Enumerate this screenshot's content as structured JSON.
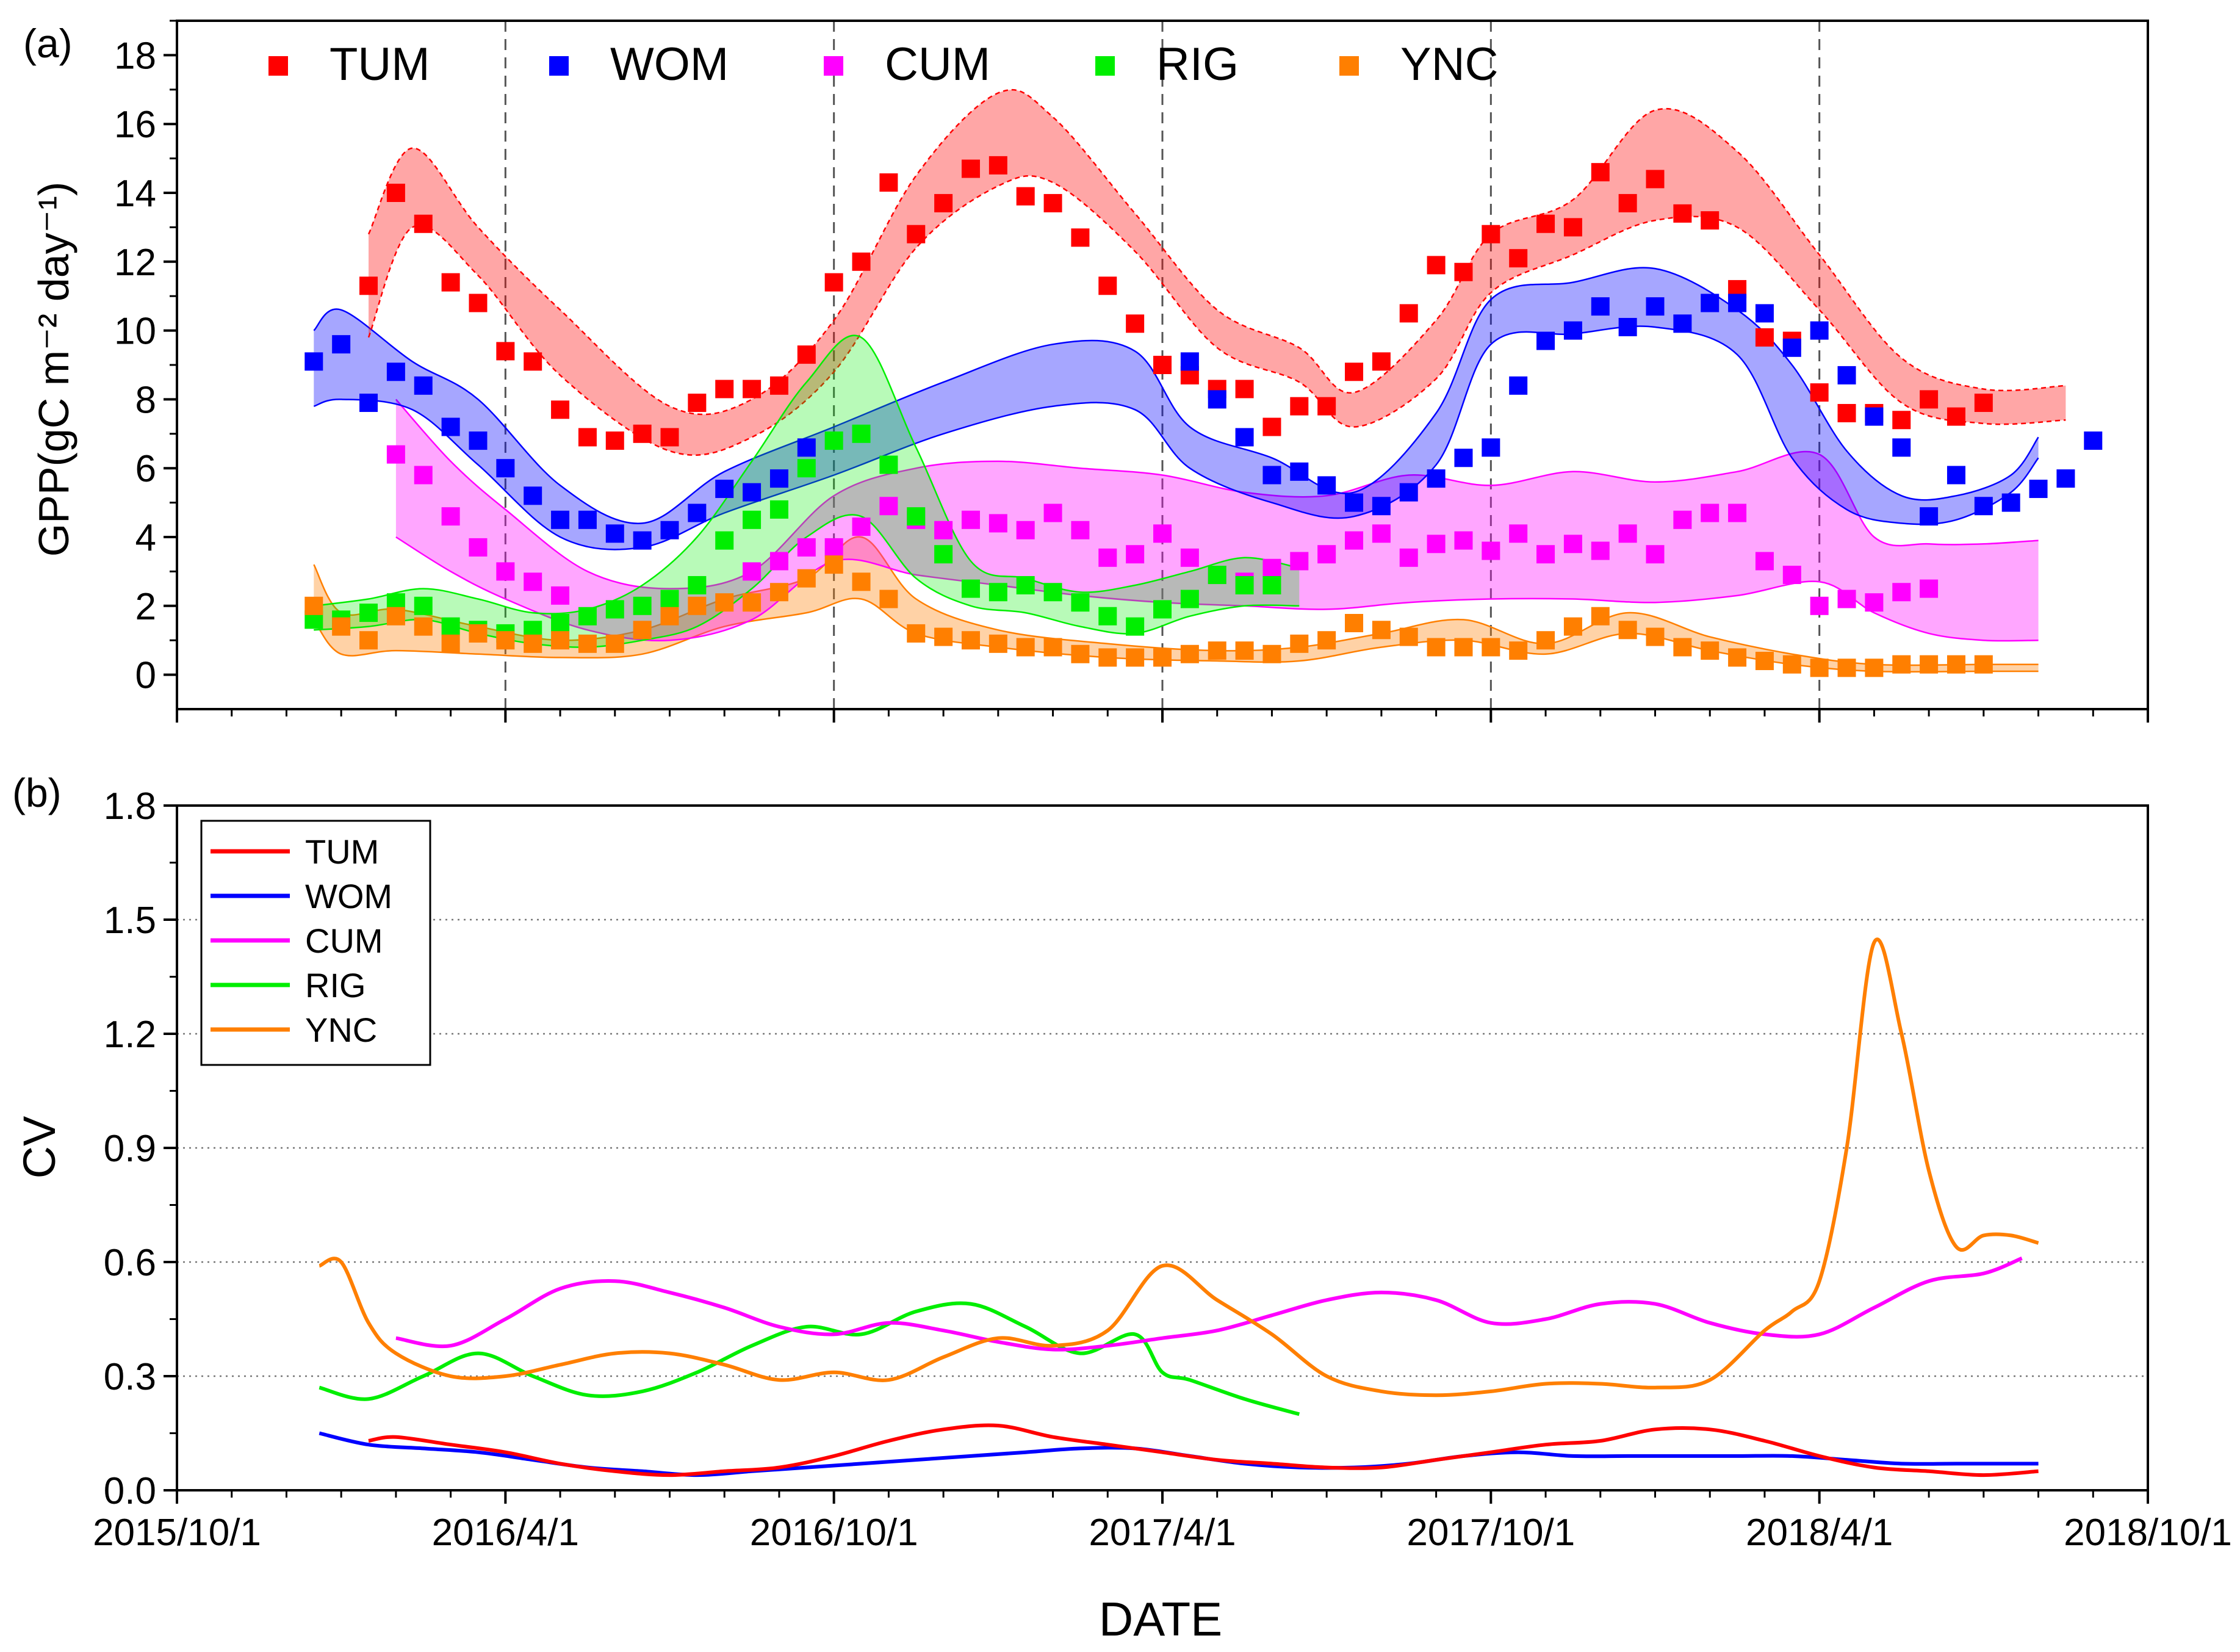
{
  "figure": {
    "x_axis_title": "DATE",
    "panel_a_label": "(a)",
    "panel_b_label": "(b)"
  },
  "colors": {
    "TUM": "#ff0000",
    "WOM": "#0000ff",
    "CUM": "#ff00ff",
    "RIG": "#00ee00",
    "YNC": "#ff7f00"
  },
  "chart_data": [
    {
      "type": "scatter",
      "panel": "a",
      "ylabel": "GPP(gC m⁻² day⁻¹)",
      "xlabel": "DATE",
      "x_unit": "months since 2015-10-01",
      "xlim": [
        0,
        36
      ],
      "ylim": [
        -1,
        19
      ],
      "y_ticks": [
        0,
        2,
        4,
        6,
        8,
        10,
        12,
        14,
        16,
        18
      ],
      "x_tick_labels": [
        "2015/10/1",
        "2016/4/1",
        "2016/10/1",
        "2017/4/1",
        "2017/10/1",
        "2018/4/1",
        "2018/10/1"
      ],
      "x_tick_values": [
        0,
        6,
        12,
        18,
        24,
        30,
        36
      ],
      "vertical_dashed_lines_at": [
        6,
        12,
        18,
        24,
        30
      ],
      "legend": [
        "TUM",
        "WOM",
        "CUM",
        "RIG",
        "YNC"
      ],
      "legend_position": "top",
      "series": [
        {
          "name": "TUM",
          "t0": 3.5,
          "dt": 0.5,
          "values": [
            11.3,
            14.0,
            13.1,
            11.4,
            10.8,
            9.4,
            9.1,
            7.7,
            6.9,
            6.8,
            7.0,
            6.9,
            7.9,
            8.3,
            8.3,
            8.4,
            9.3,
            11.4,
            12.0,
            14.3,
            12.8,
            13.7,
            14.7,
            14.8,
            13.9,
            13.7,
            12.7,
            11.3,
            10.2,
            9.0,
            8.7,
            8.3,
            8.3,
            7.2,
            7.8,
            7.8,
            8.8,
            9.1,
            10.5,
            11.9,
            11.7,
            12.8,
            12.1,
            13.1,
            13.0,
            14.6,
            13.7,
            14.4,
            13.4,
            13.2,
            11.2,
            9.8,
            9.7,
            8.2,
            7.6,
            7.6,
            7.4,
            8.0,
            7.5,
            7.9
          ],
          "band_t": [
            3.5,
            4.3,
            5.5,
            7,
            9,
            10.5,
            12,
            13.5,
            15,
            16,
            17.5,
            19,
            20.5,
            21.5,
            23,
            24,
            25.5,
            27,
            28.5,
            30,
            31.5,
            33,
            34.5
          ],
          "band_upper": [
            12.8,
            15.3,
            13.0,
            10.6,
            7.8,
            8.0,
            10.3,
            14.5,
            16.9,
            16.2,
            13.4,
            10.6,
            9.5,
            8.2,
            10.3,
            12.8,
            13.8,
            16.4,
            15.2,
            12.2,
            9.2,
            8.3,
            8.4
          ],
          "band_lower": [
            9.8,
            13.0,
            11.6,
            8.7,
            6.5,
            6.9,
            8.8,
            12.4,
            14.2,
            14.3,
            12.3,
            9.5,
            8.5,
            7.2,
            8.6,
            11.1,
            12.2,
            13.2,
            13.0,
            10.6,
            7.9,
            7.3,
            7.4
          ]
        },
        {
          "name": "WOM",
          "t0": 2.5,
          "dt": 0.5,
          "values": [
            9.1,
            9.6,
            7.9,
            8.8,
            8.4,
            7.2,
            6.8,
            6.0,
            5.2,
            4.5,
            4.5,
            4.1,
            3.9,
            4.2,
            4.7,
            5.4,
            5.3,
            5.7,
            6.6,
            null,
            null,
            null,
            null,
            null,
            null,
            null,
            null,
            null,
            null,
            null,
            null,
            null,
            9.1,
            8.0,
            6.9,
            5.8,
            5.9,
            5.5,
            5.0,
            4.9,
            5.3,
            5.7,
            6.3,
            6.6,
            8.4,
            9.7,
            10.0,
            10.7,
            10.1,
            10.7,
            10.2,
            10.8,
            10.8,
            10.5,
            9.5,
            10.0,
            8.7,
            7.5,
            6.6,
            4.6,
            5.8,
            4.9,
            5.0,
            5.4,
            5.7,
            6.8
          ],
          "band_t": [
            2.5,
            3,
            4.3,
            5.5,
            7,
            8.5,
            10,
            12,
            14,
            16,
            17.5,
            18.5,
            20,
            21.5,
            23,
            24,
            25.5,
            27,
            28.5,
            29.5,
            30.5,
            31.5,
            32.5,
            33.5,
            34
          ],
          "band_upper": [
            10.0,
            10.6,
            9.1,
            8.0,
            5.5,
            4.4,
            5.9,
            7.2,
            8.5,
            9.6,
            9.4,
            7.2,
            6.3,
            5.3,
            7.6,
            10.9,
            11.4,
            11.8,
            10.6,
            9.0,
            6.5,
            5.2,
            5.2,
            5.8,
            6.9
          ],
          "band_lower": [
            7.8,
            8.0,
            7.7,
            6.1,
            4.0,
            3.7,
            4.7,
            5.8,
            7.0,
            7.8,
            7.7,
            6.0,
            5.0,
            4.6,
            6.1,
            9.6,
            9.9,
            10.1,
            9.3,
            6.3,
            4.8,
            4.4,
            4.5,
            5.3,
            6.3
          ]
        },
        {
          "name": "CUM",
          "t0": 4,
          "dt": 0.5,
          "values": [
            6.4,
            5.8,
            4.6,
            3.7,
            3.0,
            2.7,
            2.3,
            null,
            null,
            null,
            null,
            null,
            null,
            3.0,
            3.3,
            3.7,
            3.7,
            4.3,
            4.9,
            4.5,
            4.2,
            4.5,
            4.4,
            4.2,
            4.7,
            4.2,
            3.4,
            3.5,
            4.1,
            3.4,
            2.9,
            2.7,
            3.1,
            3.3,
            3.5,
            3.9,
            4.1,
            3.4,
            3.8,
            3.9,
            3.6,
            4.1,
            3.5,
            3.8,
            3.6,
            4.1,
            3.5,
            4.5,
            4.7,
            4.7,
            3.3,
            2.9,
            2.0,
            2.2,
            2.1,
            2.4,
            2.5
          ],
          "band_t": [
            4,
            5,
            6,
            7.5,
            9,
            10.5,
            12,
            13.5,
            15,
            16.5,
            18,
            19.5,
            21,
            22.5,
            24,
            25.5,
            27,
            28.5,
            30,
            31,
            32,
            33,
            34
          ],
          "band_upper": [
            8.0,
            6.2,
            4.8,
            3.0,
            2.5,
            3.0,
            5.2,
            6.0,
            6.2,
            6.0,
            5.8,
            5.3,
            5.2,
            5.8,
            5.5,
            5.9,
            5.6,
            5.9,
            6.4,
            4.0,
            3.8,
            3.8,
            3.9
          ],
          "band_lower": [
            4.0,
            3.0,
            2.2,
            1.3,
            1.0,
            1.6,
            3.3,
            2.9,
            2.6,
            2.3,
            2.1,
            2.0,
            1.9,
            2.1,
            2.2,
            2.2,
            2.1,
            2.3,
            2.7,
            1.8,
            1.2,
            1.0,
            1.0
          ]
        },
        {
          "name": "RIG",
          "t0": 2.5,
          "dt": 0.5,
          "values": [
            1.6,
            1.6,
            1.8,
            2.1,
            2.0,
            1.4,
            1.3,
            1.2,
            1.3,
            1.5,
            1.7,
            1.9,
            2.0,
            2.2,
            2.6,
            3.9,
            4.5,
            4.8,
            6.0,
            6.8,
            7.0,
            6.1,
            4.6,
            3.5,
            2.5,
            2.4,
            2.6,
            2.4,
            2.1,
            1.7,
            1.4,
            1.9,
            2.2,
            2.9,
            2.6,
            2.6
          ],
          "band_t": [
            2.5,
            3.5,
            4.5,
            5.5,
            6.5,
            7.5,
            8.5,
            9.5,
            10.5,
            11.5,
            12.5,
            13.5,
            14.5,
            15.5,
            16.5,
            17.5,
            18.5,
            19.5,
            20.5
          ],
          "band_upper": [
            2.0,
            2.2,
            2.5,
            2.2,
            1.8,
            1.9,
            2.6,
            4.0,
            6.2,
            8.5,
            9.8,
            6.6,
            3.3,
            2.8,
            2.4,
            2.6,
            3.0,
            3.4,
            3.1
          ],
          "band_lower": [
            1.3,
            1.4,
            1.6,
            1.2,
            0.9,
            0.8,
            1.0,
            1.4,
            2.5,
            4.0,
            4.6,
            2.8,
            2.0,
            1.8,
            1.4,
            1.2,
            1.7,
            2.0,
            2.0
          ]
        },
        {
          "name": "YNC",
          "t0": 2.5,
          "dt": 0.5,
          "values": [
            2.0,
            1.4,
            1.0,
            1.7,
            1.4,
            0.9,
            1.2,
            1.0,
            0.9,
            1.0,
            0.9,
            0.9,
            1.3,
            1.7,
            2.0,
            2.1,
            2.1,
            2.4,
            2.8,
            3.2,
            2.7,
            2.2,
            1.2,
            1.1,
            1.0,
            0.9,
            0.8,
            0.8,
            0.6,
            0.5,
            0.5,
            0.5,
            0.6,
            0.7,
            0.7,
            0.6,
            0.9,
            1.0,
            1.5,
            1.3,
            1.1,
            0.8,
            0.8,
            0.8,
            0.7,
            1.0,
            1.4,
            1.7,
            1.3,
            1.1,
            0.8,
            0.7,
            0.5,
            0.4,
            0.3,
            0.2,
            0.2,
            0.2,
            0.3,
            0.3,
            0.3,
            0.3
          ],
          "band_t": [
            2.5,
            3,
            4,
            5.5,
            7,
            8.5,
            10,
            11.5,
            12.5,
            13.5,
            15,
            17,
            19,
            20.5,
            22,
            23.5,
            25,
            26.5,
            28,
            29.5,
            31,
            33,
            34
          ],
          "band_upper": [
            3.2,
            1.8,
            1.9,
            1.4,
            1.0,
            1.3,
            2.2,
            2.8,
            4.0,
            2.2,
            1.3,
            0.9,
            0.7,
            0.8,
            1.2,
            1.6,
            0.9,
            1.8,
            1.1,
            0.6,
            0.3,
            0.3,
            0.3
          ],
          "band_lower": [
            1.6,
            0.6,
            0.7,
            0.6,
            0.5,
            0.6,
            1.4,
            1.8,
            2.2,
            1.2,
            0.8,
            0.5,
            0.4,
            0.4,
            0.8,
            1.0,
            0.6,
            1.2,
            0.7,
            0.3,
            0.1,
            0.1,
            0.1
          ]
        }
      ]
    },
    {
      "type": "line",
      "panel": "b",
      "ylabel": "CV",
      "xlabel": "DATE",
      "x_unit": "months since 2015-10-01",
      "xlim": [
        0,
        36
      ],
      "ylim": [
        0,
        1.8
      ],
      "y_tick_labels": [
        "0.0",
        "0.3",
        "0.6",
        "0.9",
        "1.2",
        "1.5",
        "1.8"
      ],
      "y_tick_values": [
        0,
        0.3,
        0.6,
        0.9,
        1.2,
        1.5,
        1.8
      ],
      "y_grid": "dotted",
      "x_tick_labels": [
        "2015/10/1",
        "2016/4/1",
        "2016/10/1",
        "2017/4/1",
        "2017/10/1",
        "2018/4/1",
        "2018/10/1"
      ],
      "x_tick_values": [
        0,
        6,
        12,
        18,
        24,
        30,
        36
      ],
      "legend": [
        "TUM",
        "WOM",
        "CUM",
        "RIG",
        "YNC"
      ],
      "legend_position": "top-left",
      "series": [
        {
          "name": "TUM",
          "x": [
            3.5,
            4,
            5,
            6,
            7,
            8,
            9,
            10,
            11,
            12,
            13,
            14,
            15,
            16,
            17,
            18,
            19,
            20,
            21,
            22,
            23,
            24,
            25,
            26,
            27,
            28,
            29,
            30,
            31,
            32,
            33,
            34
          ],
          "values": [
            0.13,
            0.14,
            0.12,
            0.1,
            0.07,
            0.05,
            0.04,
            0.05,
            0.06,
            0.09,
            0.13,
            0.16,
            0.17,
            0.14,
            0.12,
            0.1,
            0.08,
            0.07,
            0.06,
            0.06,
            0.08,
            0.1,
            0.12,
            0.13,
            0.16,
            0.16,
            0.13,
            0.09,
            0.06,
            0.05,
            0.04,
            0.05
          ]
        },
        {
          "name": "WOM",
          "x": [
            2.6,
            3.5,
            4.5,
            5.5,
            6.5,
            7.5,
            8.5,
            9.5,
            10.5,
            11.5,
            12.5,
            13.5,
            14.5,
            15.5,
            16.5,
            17.5,
            18.5,
            19.5,
            20.5,
            21.5,
            22.5,
            23.5,
            24.5,
            25.5,
            26.5,
            27.5,
            28.5,
            29.5,
            30.5,
            31.5,
            32.5,
            33.5,
            34
          ],
          "values": [
            0.15,
            0.12,
            0.11,
            0.1,
            0.08,
            0.06,
            0.05,
            0.04,
            0.05,
            0.06,
            0.07,
            0.08,
            0.09,
            0.1,
            0.11,
            0.11,
            0.09,
            0.07,
            0.06,
            0.06,
            0.07,
            0.09,
            0.1,
            0.09,
            0.09,
            0.09,
            0.09,
            0.09,
            0.08,
            0.07,
            0.07,
            0.07,
            0.07
          ]
        },
        {
          "name": "CUM",
          "x": [
            4,
            5,
            6,
            7,
            8,
            9,
            10,
            11,
            12,
            13,
            14,
            15,
            16,
            17,
            18,
            19,
            20,
            21,
            22,
            23,
            24,
            25,
            26,
            27,
            28,
            29,
            30,
            31,
            32,
            33,
            33.7
          ],
          "values": [
            0.4,
            0.38,
            0.45,
            0.53,
            0.55,
            0.52,
            0.48,
            0.43,
            0.41,
            0.44,
            0.42,
            0.39,
            0.37,
            0.38,
            0.4,
            0.42,
            0.46,
            0.5,
            0.52,
            0.5,
            0.44,
            0.45,
            0.49,
            0.49,
            0.44,
            0.41,
            0.41,
            0.48,
            0.55,
            0.57,
            0.61
          ]
        },
        {
          "name": "RIG",
          "x": [
            2.6,
            3.5,
            4.5,
            5.5,
            6.5,
            7.5,
            8.5,
            9.5,
            10.5,
            11.5,
            12.5,
            13.5,
            14.5,
            15.5,
            16.5,
            17.5,
            18,
            18.5,
            19.5,
            20.5
          ],
          "values": [
            0.27,
            0.24,
            0.3,
            0.36,
            0.3,
            0.25,
            0.26,
            0.31,
            0.38,
            0.43,
            0.41,
            0.47,
            0.49,
            0.43,
            0.36,
            0.41,
            0.31,
            0.29,
            0.24,
            0.2
          ]
        },
        {
          "name": "YNC",
          "x": [
            2.6,
            3,
            3.5,
            4,
            5,
            6,
            7,
            8,
            9,
            10,
            11,
            12,
            13,
            14,
            15,
            16,
            17,
            18,
            19,
            20,
            21,
            22,
            23,
            24,
            25,
            26,
            27,
            28,
            29,
            29.5,
            30,
            30.5,
            31,
            31.5,
            32,
            32.5,
            33,
            33.5,
            34
          ],
          "values": [
            0.59,
            0.6,
            0.44,
            0.36,
            0.3,
            0.3,
            0.33,
            0.36,
            0.36,
            0.33,
            0.29,
            0.31,
            0.29,
            0.35,
            0.4,
            0.38,
            0.42,
            0.59,
            0.5,
            0.41,
            0.3,
            0.26,
            0.25,
            0.26,
            0.28,
            0.28,
            0.27,
            0.29,
            0.42,
            0.47,
            0.55,
            0.9,
            1.44,
            1.2,
            0.84,
            0.64,
            0.67,
            0.67,
            0.65
          ]
        }
      ]
    }
  ]
}
